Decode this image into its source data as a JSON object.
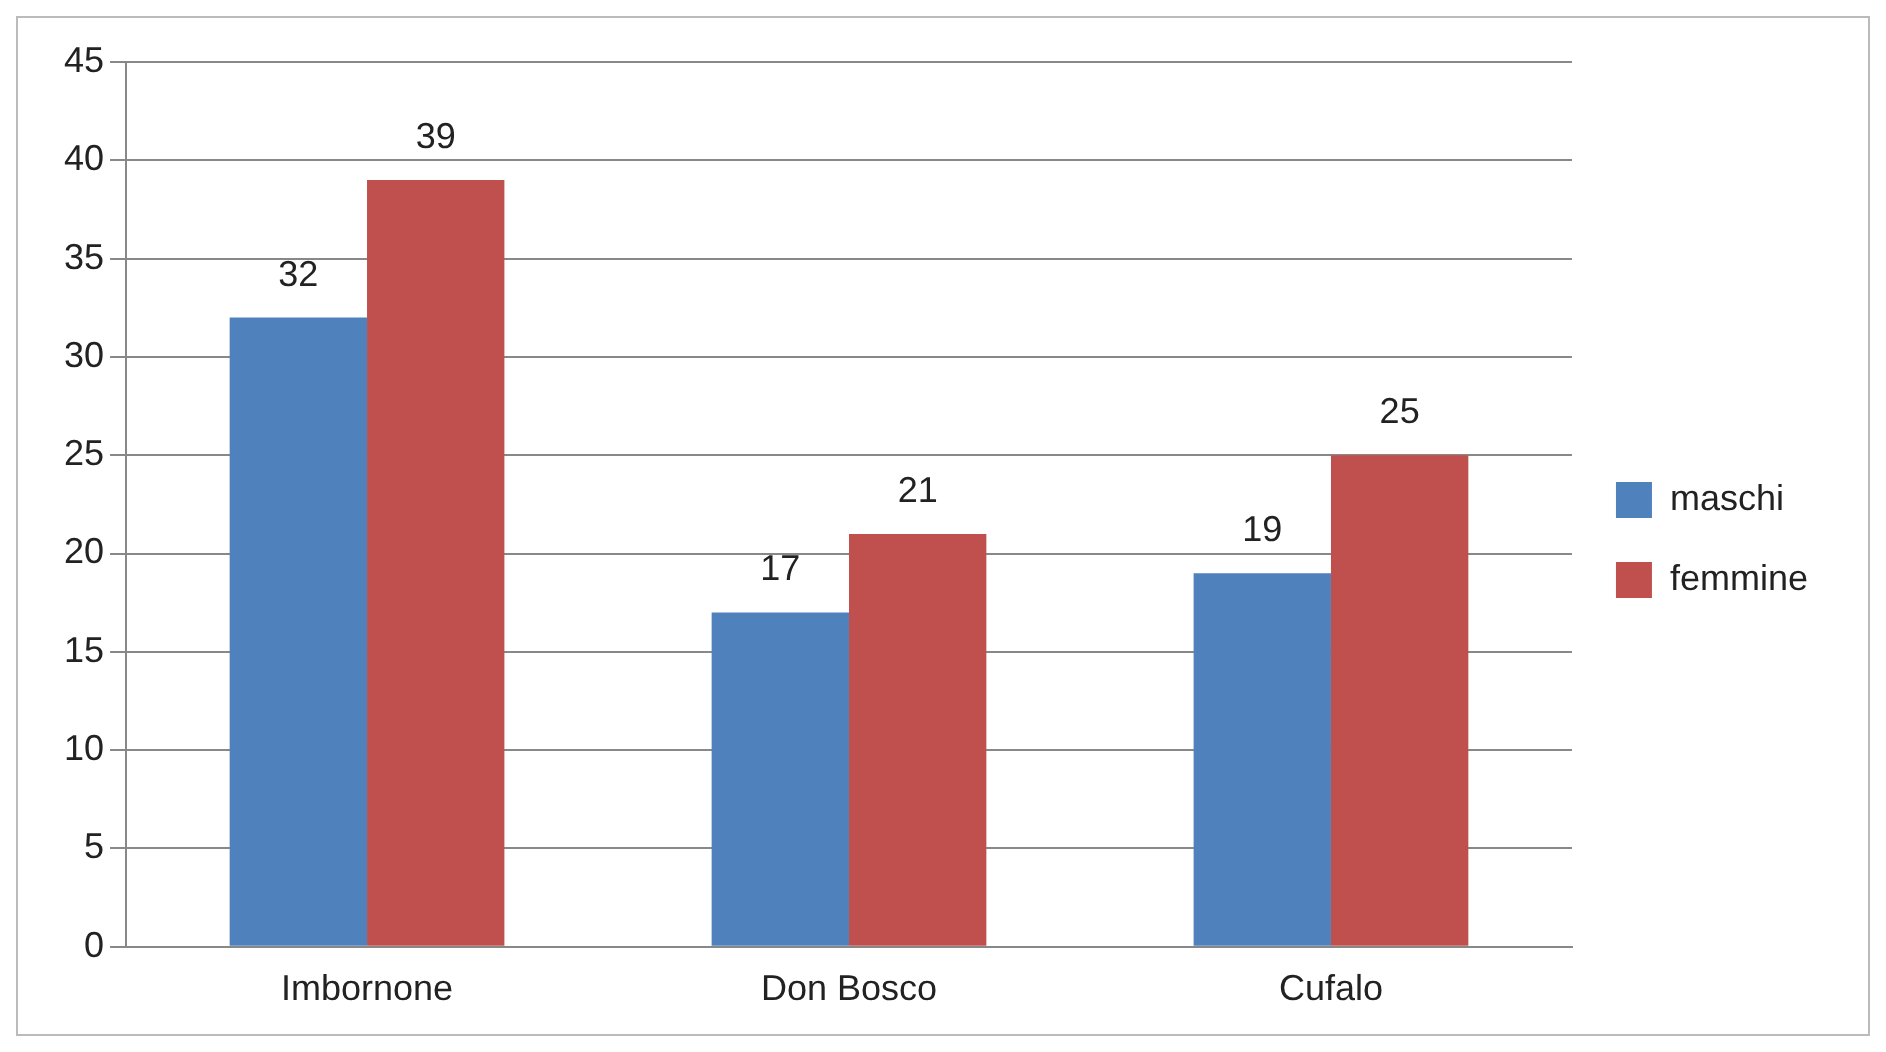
{
  "chart_data": {
    "type": "bar",
    "categories": [
      "Imbornone",
      "Don Bosco",
      "Cufalo"
    ],
    "series": [
      {
        "name": "maschi",
        "color": "#4f81bd",
        "values": [
          32,
          17,
          19
        ]
      },
      {
        "name": "femmine",
        "color": "#c0504d",
        "values": [
          39,
          21,
          25
        ]
      }
    ],
    "ylim": [
      0,
      45
    ],
    "yticks": [
      0,
      5,
      10,
      15,
      20,
      25,
      30,
      35,
      40,
      45
    ],
    "grid": "y",
    "legend": "right",
    "data_labels": true
  }
}
